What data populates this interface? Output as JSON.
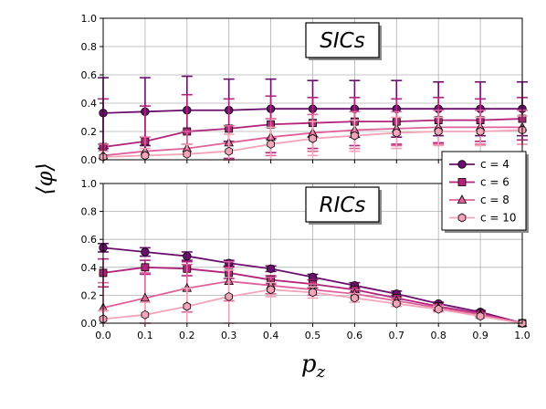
{
  "chart_data": {
    "type": "line",
    "x": [
      0.0,
      0.1,
      0.2,
      0.3,
      0.4,
      0.5,
      0.6,
      0.7,
      0.8,
      0.9,
      1.0
    ],
    "xlabel_symbol": "p",
    "xlabel_subscript": "z",
    "ylabel": "⟨φ⟩",
    "xlim": [
      0.0,
      1.0
    ],
    "ylim": [
      0.0,
      1.0
    ],
    "xticks": [
      "0.0",
      "0.1",
      "0.2",
      "0.3",
      "0.4",
      "0.5",
      "0.6",
      "0.7",
      "0.8",
      "0.9",
      "1.0"
    ],
    "yticks": [
      "0.0",
      "0.2",
      "0.4",
      "0.6",
      "0.8",
      "1.0"
    ],
    "grid": true,
    "legend_placement": "right, between panels",
    "series_style": [
      {
        "c": "4",
        "label": "c = 4",
        "color": "#6b0f6e",
        "marker": "circle"
      },
      {
        "c": "6",
        "label": "c = 6",
        "color": "#b3237c",
        "marker": "square"
      },
      {
        "c": "8",
        "label": "c = 8",
        "color": "#e0609a",
        "marker": "triangle"
      },
      {
        "c": "10",
        "label": "c = 10",
        "color": "#f4a3b8",
        "marker": "hexagon"
      }
    ],
    "panels": [
      {
        "annotation": "SICs",
        "series": [
          {
            "name": "c = 4",
            "values": [
              0.33,
              0.34,
              0.35,
              0.35,
              0.36,
              0.36,
              0.36,
              0.36,
              0.36,
              0.36,
              0.36
            ],
            "err": [
              0.25,
              0.24,
              0.24,
              0.22,
              0.21,
              0.2,
              0.2,
              0.2,
              0.19,
              0.19,
              0.19
            ]
          },
          {
            "name": "c = 6",
            "values": [
              0.09,
              0.13,
              0.2,
              0.22,
              0.25,
              0.26,
              0.27,
              0.27,
              0.28,
              0.28,
              0.29
            ],
            "err": [
              0.34,
              0.25,
              0.26,
              0.21,
              0.2,
              0.18,
              0.17,
              0.16,
              0.16,
              0.15,
              0.15
            ]
          },
          {
            "name": "c = 8",
            "values": [
              0.03,
              0.06,
              0.08,
              0.12,
              0.16,
              0.19,
              0.21,
              0.22,
              0.23,
              0.23,
              0.23
            ],
            "err": [
              0.08,
              0.1,
              0.12,
              0.12,
              0.13,
              0.13,
              0.13,
              0.12,
              0.12,
              0.12,
              0.12
            ]
          },
          {
            "name": "c = 10",
            "values": [
              0.02,
              0.03,
              0.04,
              0.06,
              0.11,
              0.15,
              0.17,
              0.19,
              0.2,
              0.2,
              0.21
            ],
            "err": [
              0.04,
              0.05,
              0.07,
              0.12,
              0.12,
              0.12,
              0.11,
              0.11,
              0.1,
              0.1,
              0.1
            ]
          }
        ]
      },
      {
        "annotation": "RICs",
        "series": [
          {
            "name": "c = 4",
            "values": [
              0.54,
              0.51,
              0.48,
              0.43,
              0.39,
              0.33,
              0.27,
              0.21,
              0.14,
              0.08,
              0.0
            ],
            "err": [
              0.03,
              0.03,
              0.03,
              0.02,
              0.02,
              0.02,
              0.02,
              0.02,
              0.01,
              0.01,
              0.0
            ]
          },
          {
            "name": "c = 6",
            "values": [
              0.36,
              0.4,
              0.39,
              0.36,
              0.31,
              0.28,
              0.24,
              0.18,
              0.12,
              0.07,
              0.0
            ],
            "err": [
              0.1,
              0.05,
              0.05,
              0.04,
              0.03,
              0.03,
              0.02,
              0.02,
              0.02,
              0.01,
              0.0
            ]
          },
          {
            "name": "c = 8",
            "values": [
              0.11,
              0.18,
              0.25,
              0.3,
              0.27,
              0.24,
              0.21,
              0.16,
              0.11,
              0.06,
              0.0
            ],
            "err": [
              0.18,
              0.18,
              0.17,
              0.14,
              0.06,
              0.04,
              0.03,
              0.02,
              0.02,
              0.01,
              0.0
            ]
          },
          {
            "name": "c = 10",
            "values": [
              0.03,
              0.06,
              0.12,
              0.19,
              0.24,
              0.22,
              0.18,
              0.14,
              0.1,
              0.05,
              0.0
            ],
            "err": [
              0.06,
              0.09,
              0.13,
              0.19,
              0.05,
              0.04,
              0.03,
              0.02,
              0.02,
              0.01,
              0.0
            ]
          }
        ]
      }
    ]
  }
}
